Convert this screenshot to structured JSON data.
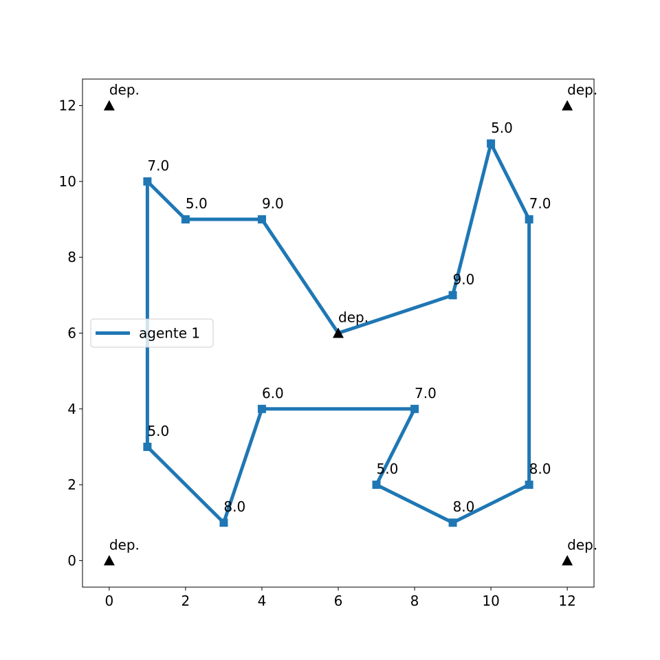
{
  "chart_data": {
    "type": "line",
    "title": "",
    "xlabel": "",
    "ylabel": "",
    "xlim": [
      -0.7,
      12.7
    ],
    "ylim": [
      -0.7,
      12.7
    ],
    "xticks": [
      0,
      2,
      4,
      6,
      8,
      10,
      12
    ],
    "yticks": [
      0,
      2,
      4,
      6,
      8,
      10,
      12
    ],
    "grid": false,
    "legend_position": "center-left",
    "series": [
      {
        "name": "agente 1",
        "color": "#1f77b4",
        "marker": "square",
        "points": [
          {
            "x": 6,
            "y": 6
          },
          {
            "x": 4,
            "y": 9
          },
          {
            "x": 2,
            "y": 9
          },
          {
            "x": 1,
            "y": 10
          },
          {
            "x": 1,
            "y": 3
          },
          {
            "x": 3,
            "y": 1
          },
          {
            "x": 4,
            "y": 4
          },
          {
            "x": 8,
            "y": 4
          },
          {
            "x": 7,
            "y": 2
          },
          {
            "x": 9,
            "y": 1
          },
          {
            "x": 11,
            "y": 2
          },
          {
            "x": 11,
            "y": 9
          },
          {
            "x": 10,
            "y": 11
          },
          {
            "x": 9,
            "y": 7
          },
          {
            "x": 6,
            "y": 6
          }
        ]
      }
    ],
    "point_annotations": [
      {
        "x": 4,
        "y": 9,
        "label": "9.0"
      },
      {
        "x": 2,
        "y": 9,
        "label": "5.0"
      },
      {
        "x": 1,
        "y": 10,
        "label": "7.0"
      },
      {
        "x": 1,
        "y": 3,
        "label": "5.0"
      },
      {
        "x": 3,
        "y": 1,
        "label": "8.0"
      },
      {
        "x": 4,
        "y": 4,
        "label": "6.0"
      },
      {
        "x": 8,
        "y": 4,
        "label": "7.0"
      },
      {
        "x": 7,
        "y": 2,
        "label": "5.0"
      },
      {
        "x": 9,
        "y": 1,
        "label": "8.0"
      },
      {
        "x": 11,
        "y": 2,
        "label": "8.0"
      },
      {
        "x": 11,
        "y": 9,
        "label": "7.0"
      },
      {
        "x": 10,
        "y": 11,
        "label": "5.0"
      },
      {
        "x": 9,
        "y": 7,
        "label": "9.0"
      }
    ],
    "depots": [
      {
        "x": 0,
        "y": 12,
        "label": "dep."
      },
      {
        "x": 12,
        "y": 12,
        "label": "dep."
      },
      {
        "x": 6,
        "y": 6,
        "label": "dep."
      },
      {
        "x": 0,
        "y": 0,
        "label": "dep."
      },
      {
        "x": 12,
        "y": 0,
        "label": "dep."
      }
    ],
    "depot_marker": "triangle",
    "depot_color": "#000000"
  }
}
